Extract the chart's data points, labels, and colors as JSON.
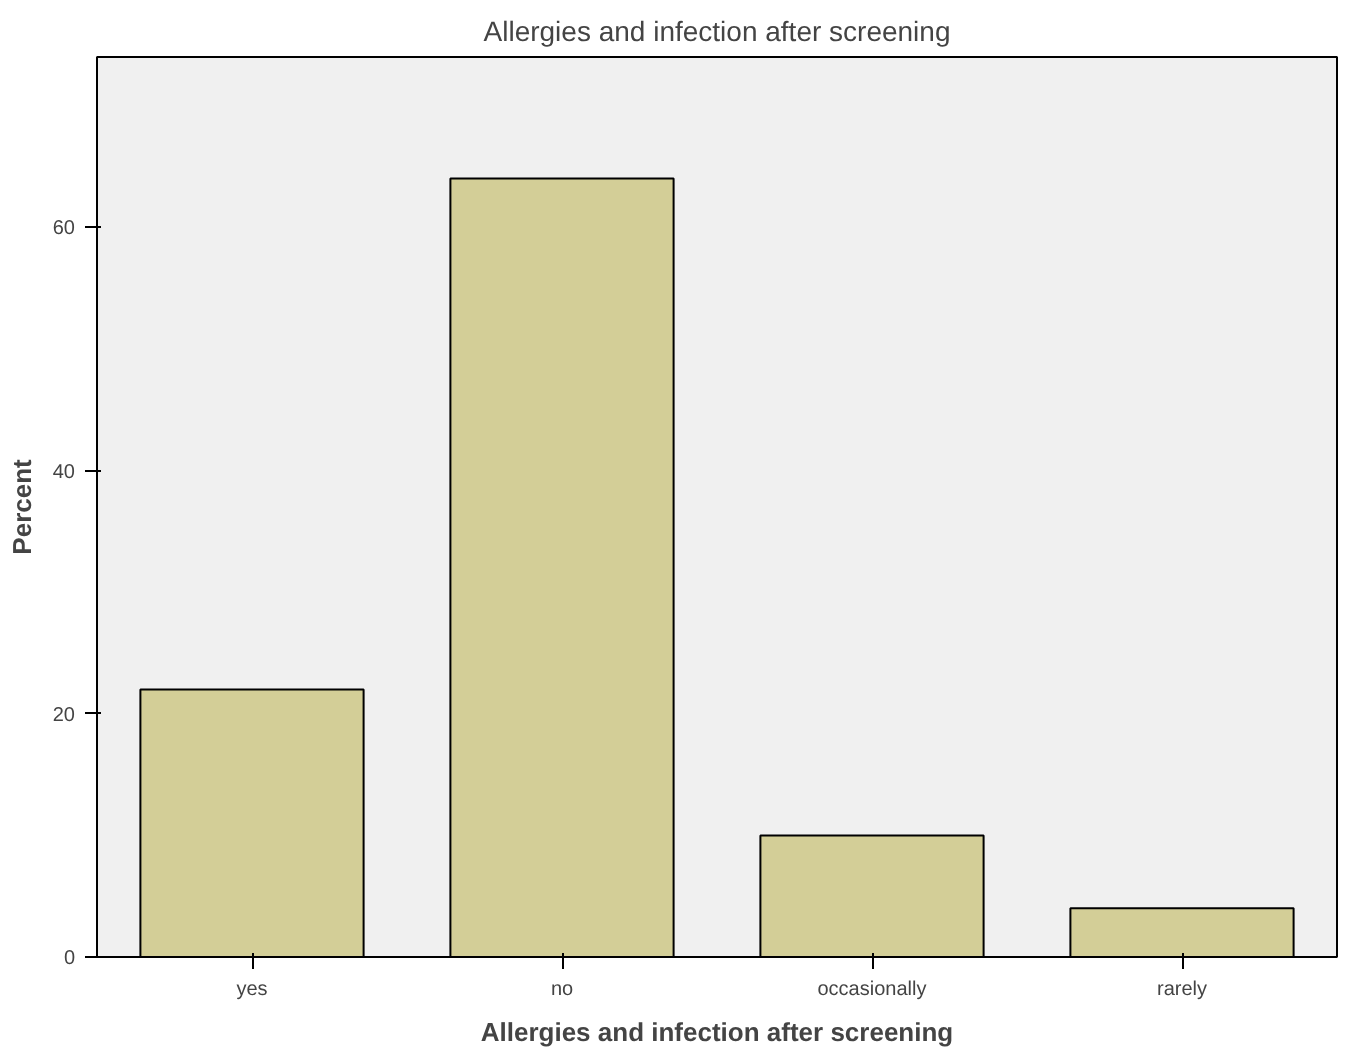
{
  "chart_data": {
    "type": "bar",
    "title": "Allergies and infection after screening",
    "xlabel": "Allergies and infection after screening",
    "ylabel": "Percent",
    "categories": [
      "yes",
      "no",
      "occasionally",
      "rarely"
    ],
    "values": [
      22,
      64,
      10,
      4
    ],
    "color": "#d3ce97",
    "ylim": [
      0,
      74
    ],
    "yticks": [
      0,
      20,
      40,
      60
    ],
    "grid": false
  }
}
